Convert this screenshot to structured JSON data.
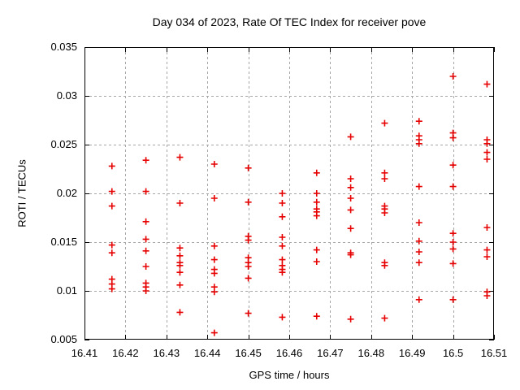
{
  "chart_data": {
    "type": "scatter",
    "title": "Day 034 of 2023, Rate Of TEC Index for receiver pove",
    "xlabel": "GPS time / hours",
    "ylabel": "ROTI / TECUs",
    "xlim": [
      16.41,
      16.51
    ],
    "ylim": [
      0.005,
      0.035
    ],
    "x_ticks": [
      {
        "label": "16.41",
        "value": 16.41
      },
      {
        "label": "16.42",
        "value": 16.42
      },
      {
        "label": "16.43",
        "value": 16.43
      },
      {
        "label": "16.44",
        "value": 16.44
      },
      {
        "label": "16.45",
        "value": 16.45
      },
      {
        "label": "16.46",
        "value": 16.46
      },
      {
        "label": "16.47",
        "value": 16.47
      },
      {
        "label": "16.48",
        "value": 16.48
      },
      {
        "label": "16.49",
        "value": 16.49
      },
      {
        "label": "16.5",
        "value": 16.5
      },
      {
        "label": "16.51",
        "value": 16.51
      }
    ],
    "y_ticks": [
      {
        "label": "0.005",
        "value": 0.005
      },
      {
        "label": "0.01",
        "value": 0.01
      },
      {
        "label": "0.015",
        "value": 0.015
      },
      {
        "label": "0.02",
        "value": 0.02
      },
      {
        "label": "0.025",
        "value": 0.025
      },
      {
        "label": "0.03",
        "value": 0.03
      },
      {
        "label": "0.035",
        "value": 0.035
      }
    ],
    "grid": true,
    "legend": "none",
    "marker": "plus",
    "marker_color": "#e60000",
    "grid_color": "#a6a6a6",
    "axis_color": "#000000",
    "background_color": "#ffffff",
    "series": [
      {
        "name": "ROTI",
        "points": [
          [
            16.4167,
            0.0228
          ],
          [
            16.4167,
            0.0202
          ],
          [
            16.4167,
            0.0187
          ],
          [
            16.4167,
            0.0147
          ],
          [
            16.4167,
            0.0139
          ],
          [
            16.4167,
            0.0112
          ],
          [
            16.4167,
            0.0107
          ],
          [
            16.4167,
            0.0102
          ],
          [
            16.425,
            0.0234
          ],
          [
            16.425,
            0.0202
          ],
          [
            16.425,
            0.0171
          ],
          [
            16.425,
            0.0153
          ],
          [
            16.425,
            0.0141
          ],
          [
            16.425,
            0.0125
          ],
          [
            16.425,
            0.0108
          ],
          [
            16.425,
            0.0104
          ],
          [
            16.425,
            0.01
          ],
          [
            16.4333,
            0.0237
          ],
          [
            16.4333,
            0.019
          ],
          [
            16.4333,
            0.0144
          ],
          [
            16.4333,
            0.0136
          ],
          [
            16.4333,
            0.0129
          ],
          [
            16.4333,
            0.0126
          ],
          [
            16.4333,
            0.0119
          ],
          [
            16.4333,
            0.0106
          ],
          [
            16.4333,
            0.0078
          ],
          [
            16.4417,
            0.023
          ],
          [
            16.4417,
            0.0195
          ],
          [
            16.4417,
            0.0146
          ],
          [
            16.4417,
            0.0132
          ],
          [
            16.4417,
            0.0122
          ],
          [
            16.4417,
            0.0118
          ],
          [
            16.4417,
            0.0104
          ],
          [
            16.4417,
            0.0099
          ],
          [
            16.4417,
            0.0057
          ],
          [
            16.45,
            0.0226
          ],
          [
            16.45,
            0.0191
          ],
          [
            16.45,
            0.0156
          ],
          [
            16.45,
            0.0152
          ],
          [
            16.45,
            0.0134
          ],
          [
            16.45,
            0.0129
          ],
          [
            16.45,
            0.0125
          ],
          [
            16.45,
            0.0113
          ],
          [
            16.45,
            0.0077
          ],
          [
            16.4583,
            0.02
          ],
          [
            16.4583,
            0.019
          ],
          [
            16.4583,
            0.0176
          ],
          [
            16.4583,
            0.0155
          ],
          [
            16.4583,
            0.0146
          ],
          [
            16.4583,
            0.0132
          ],
          [
            16.4583,
            0.0126
          ],
          [
            16.4583,
            0.0122
          ],
          [
            16.4583,
            0.0119
          ],
          [
            16.4583,
            0.0073
          ],
          [
            16.4667,
            0.0221
          ],
          [
            16.4667,
            0.02
          ],
          [
            16.4667,
            0.0191
          ],
          [
            16.4667,
            0.0184
          ],
          [
            16.4667,
            0.0181
          ],
          [
            16.4667,
            0.0177
          ],
          [
            16.4667,
            0.0142
          ],
          [
            16.4667,
            0.013
          ],
          [
            16.4667,
            0.0074
          ],
          [
            16.475,
            0.0258
          ],
          [
            16.475,
            0.0215
          ],
          [
            16.475,
            0.0206
          ],
          [
            16.475,
            0.0195
          ],
          [
            16.475,
            0.0183
          ],
          [
            16.475,
            0.0164
          ],
          [
            16.475,
            0.0139
          ],
          [
            16.475,
            0.0137
          ],
          [
            16.475,
            0.0071
          ],
          [
            16.4833,
            0.0272
          ],
          [
            16.4833,
            0.0221
          ],
          [
            16.4833,
            0.0215
          ],
          [
            16.4833,
            0.0187
          ],
          [
            16.4833,
            0.0184
          ],
          [
            16.4833,
            0.018
          ],
          [
            16.4833,
            0.0129
          ],
          [
            16.4833,
            0.0126
          ],
          [
            16.4833,
            0.0072
          ],
          [
            16.4917,
            0.0274
          ],
          [
            16.4917,
            0.0259
          ],
          [
            16.4917,
            0.0255
          ],
          [
            16.4917,
            0.0251
          ],
          [
            16.4917,
            0.0207
          ],
          [
            16.4917,
            0.017
          ],
          [
            16.4917,
            0.0151
          ],
          [
            16.4917,
            0.014
          ],
          [
            16.4917,
            0.0129
          ],
          [
            16.4917,
            0.0091
          ],
          [
            16.5,
            0.032
          ],
          [
            16.5,
            0.0262
          ],
          [
            16.5,
            0.0257
          ],
          [
            16.5,
            0.0229
          ],
          [
            16.5,
            0.0207
          ],
          [
            16.5,
            0.0159
          ],
          [
            16.5,
            0.015
          ],
          [
            16.5,
            0.0143
          ],
          [
            16.5,
            0.0128
          ],
          [
            16.5,
            0.0091
          ],
          [
            16.5083,
            0.0312
          ],
          [
            16.5083,
            0.0255
          ],
          [
            16.5083,
            0.0251
          ],
          [
            16.5083,
            0.0242
          ],
          [
            16.5083,
            0.0235
          ],
          [
            16.5083,
            0.0165
          ],
          [
            16.5083,
            0.0142
          ],
          [
            16.5083,
            0.0135
          ],
          [
            16.5083,
            0.0099
          ],
          [
            16.5083,
            0.0095
          ]
        ]
      }
    ]
  }
}
